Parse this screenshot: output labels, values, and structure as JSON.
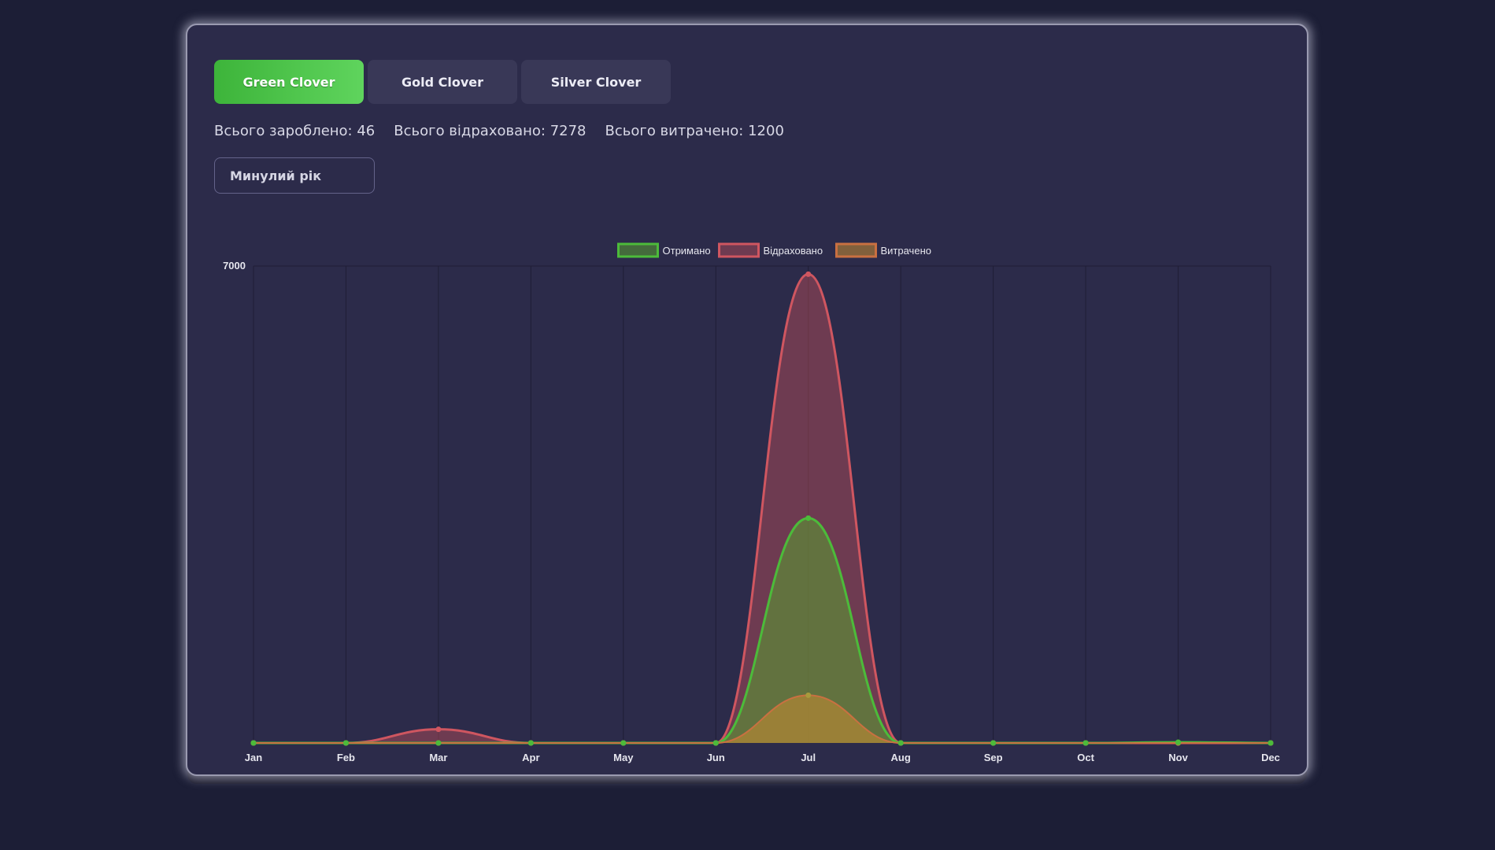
{
  "tabs": [
    {
      "label": "Green Clover",
      "active": true
    },
    {
      "label": "Gold Clover",
      "active": false
    },
    {
      "label": "Silver Clover",
      "active": false
    }
  ],
  "stats": {
    "earned": "Всього зароблено: 46",
    "deducted": "Всього відраховано: 7278",
    "spent": "Всього витрачено: 1200"
  },
  "period_select": {
    "value": "Минулий рік"
  },
  "chart_data": {
    "type": "area",
    "categories": [
      "Jan",
      "Feb",
      "Mar",
      "Apr",
      "May",
      "Jun",
      "Jul",
      "Aug",
      "Sep",
      "Oct",
      "Nov",
      "Dec"
    ],
    "ylim": [
      0,
      7000
    ],
    "y_ticks": [
      "7000"
    ],
    "legend_position": "top",
    "grid": true,
    "series": [
      {
        "name": "Отримано",
        "color": "#4cbb3a",
        "values": [
          0,
          0,
          0,
          0,
          0,
          0,
          3300,
          0,
          0,
          0,
          10,
          0
        ]
      },
      {
        "name": "Відраховано",
        "color": "#cf5660",
        "values": [
          0,
          0,
          200,
          0,
          0,
          0,
          6880,
          0,
          0,
          0,
          0,
          0
        ]
      },
      {
        "name": "Витрачено",
        "color": "#c97041",
        "values": [
          0,
          0,
          0,
          0,
          0,
          0,
          700,
          0,
          0,
          0,
          0,
          0
        ]
      }
    ]
  }
}
